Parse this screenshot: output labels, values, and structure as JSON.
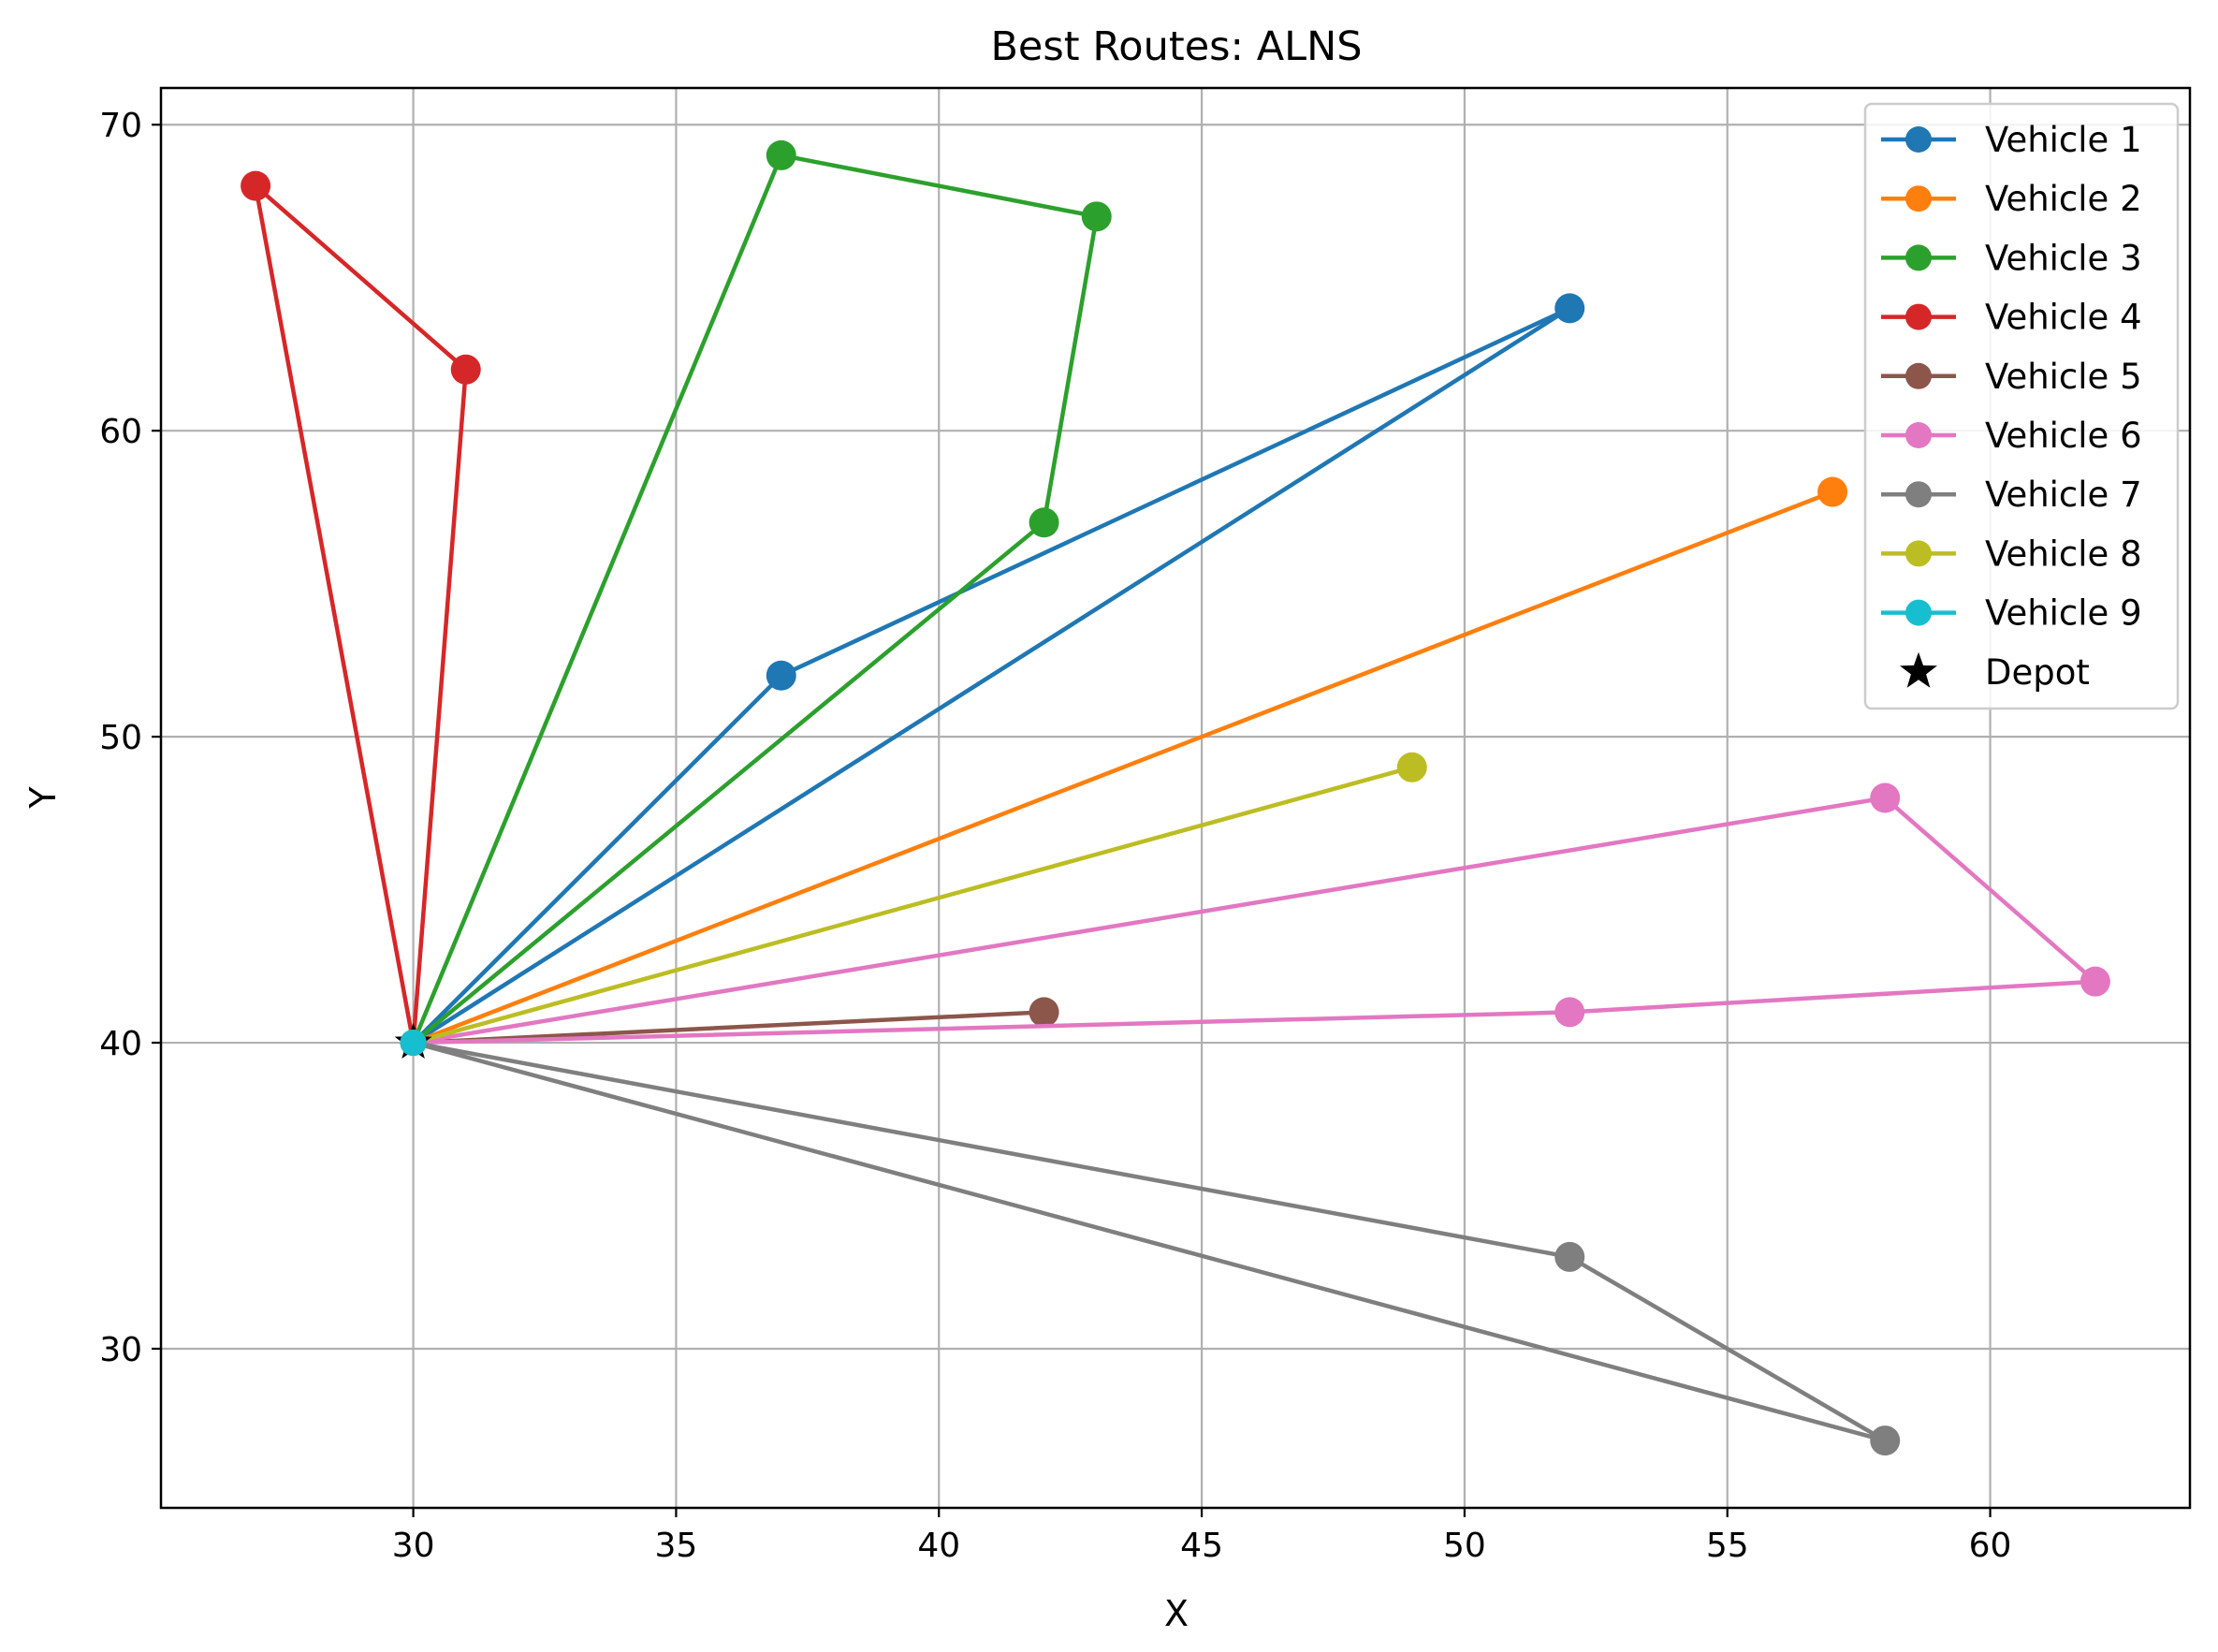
{
  "chart_data": {
    "type": "line",
    "title": "Best Routes: ALNS",
    "xlabel": "X",
    "ylabel": "Y",
    "xlim": [
      25.2,
      63.8
    ],
    "ylim": [
      24.8,
      71.2
    ],
    "xticks": [
      30,
      35,
      40,
      45,
      50,
      55,
      60
    ],
    "yticks": [
      30,
      40,
      50,
      60,
      70
    ],
    "grid": true,
    "legend_position": "top-right",
    "depot": {
      "name": "Depot",
      "x": 30,
      "y": 40,
      "color": "#000000",
      "marker": "star"
    },
    "series": [
      {
        "name": "Vehicle 1",
        "color": "#1f77b4",
        "points": [
          [
            30,
            40
          ],
          [
            37,
            52
          ],
          [
            52,
            64
          ],
          [
            30,
            40
          ]
        ]
      },
      {
        "name": "Vehicle 2",
        "color": "#ff7f0e",
        "points": [
          [
            30,
            40
          ],
          [
            57,
            58
          ],
          [
            30,
            40
          ]
        ]
      },
      {
        "name": "Vehicle 3",
        "color": "#2ca02c",
        "points": [
          [
            30,
            40
          ],
          [
            42,
            57
          ],
          [
            43,
            67
          ],
          [
            37,
            69
          ],
          [
            30,
            40
          ]
        ]
      },
      {
        "name": "Vehicle 4",
        "color": "#d62728",
        "points": [
          [
            30,
            40
          ],
          [
            31,
            62
          ],
          [
            27,
            68
          ],
          [
            30,
            40
          ]
        ]
      },
      {
        "name": "Vehicle 5",
        "color": "#8c564b",
        "points": [
          [
            30,
            40
          ],
          [
            42,
            41
          ],
          [
            30,
            40
          ]
        ]
      },
      {
        "name": "Vehicle 6",
        "color": "#e377c2",
        "points": [
          [
            30,
            40
          ],
          [
            52,
            41
          ],
          [
            62,
            42
          ],
          [
            58,
            48
          ],
          [
            30,
            40
          ]
        ]
      },
      {
        "name": "Vehicle 7",
        "color": "#7f7f7f",
        "points": [
          [
            30,
            40
          ],
          [
            52,
            33
          ],
          [
            58,
            27
          ],
          [
            30,
            40
          ]
        ]
      },
      {
        "name": "Vehicle 8",
        "color": "#bcbd22",
        "points": [
          [
            30,
            40
          ],
          [
            49,
            49
          ],
          [
            30,
            40
          ]
        ]
      },
      {
        "name": "Vehicle 9",
        "color": "#17becf",
        "points": [
          [
            30,
            40
          ],
          [
            30,
            40
          ]
        ]
      }
    ]
  }
}
